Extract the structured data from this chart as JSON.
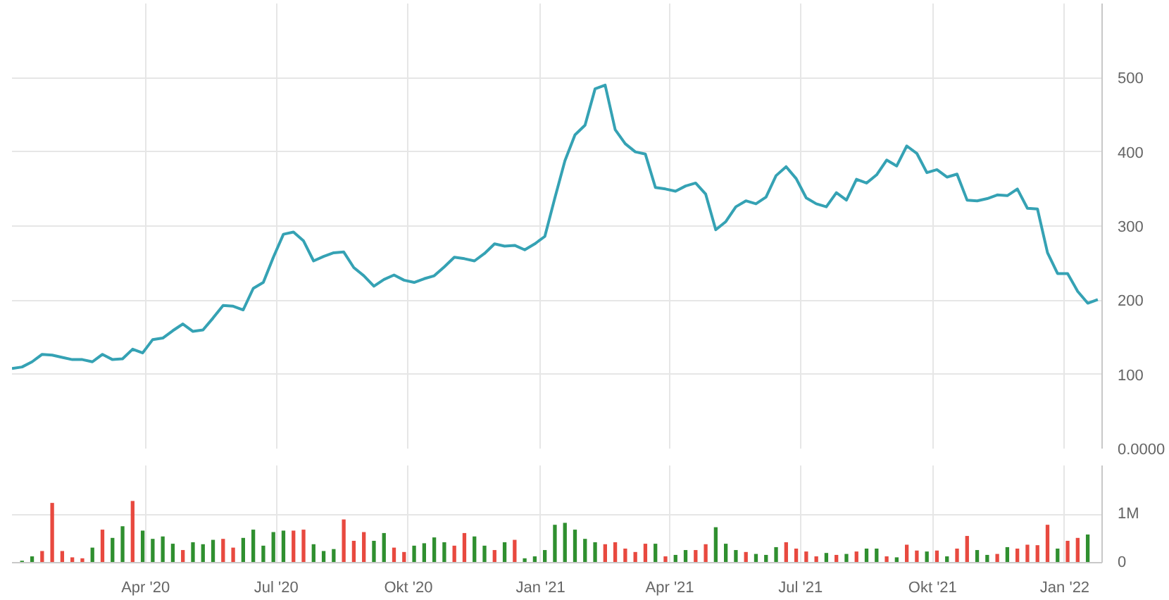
{
  "chart_data": [
    {
      "type": "line",
      "x": [
        "2019-12-30",
        "2020-01-06",
        "2020-01-13",
        "2020-01-20",
        "2020-01-27",
        "2020-02-03",
        "2020-02-10",
        "2020-02-17",
        "2020-02-24",
        "2020-03-02",
        "2020-03-09",
        "2020-03-16",
        "2020-03-23",
        "2020-03-30",
        "2020-04-06",
        "2020-04-13",
        "2020-04-20",
        "2020-04-27",
        "2020-05-04",
        "2020-05-11",
        "2020-05-18",
        "2020-05-25",
        "2020-06-01",
        "2020-06-08",
        "2020-06-15",
        "2020-06-22",
        "2020-06-29",
        "2020-07-06",
        "2020-07-13",
        "2020-07-20",
        "2020-07-27",
        "2020-08-03",
        "2020-08-10",
        "2020-08-17",
        "2020-08-24",
        "2020-08-31",
        "2020-09-07",
        "2020-09-14",
        "2020-09-21",
        "2020-09-28",
        "2020-10-05",
        "2020-10-12",
        "2020-10-19",
        "2020-10-26",
        "2020-11-02",
        "2020-11-09",
        "2020-11-16",
        "2020-11-23",
        "2020-11-30",
        "2020-12-07",
        "2020-12-14",
        "2020-12-21",
        "2020-12-28",
        "2021-01-04",
        "2021-01-11",
        "2021-01-18",
        "2021-01-25",
        "2021-02-01",
        "2021-02-08",
        "2021-02-15",
        "2021-02-22",
        "2021-03-01",
        "2021-03-08",
        "2021-03-15",
        "2021-03-22",
        "2021-03-29",
        "2021-04-05",
        "2021-04-12",
        "2021-04-19",
        "2021-04-26",
        "2021-05-03",
        "2021-05-10",
        "2021-05-17",
        "2021-05-24",
        "2021-05-31",
        "2021-06-07",
        "2021-06-14",
        "2021-06-21",
        "2021-06-28",
        "2021-07-05",
        "2021-07-12",
        "2021-07-19",
        "2021-07-26",
        "2021-08-02",
        "2021-08-09",
        "2021-08-16",
        "2021-08-23",
        "2021-08-30",
        "2021-09-06",
        "2021-09-13",
        "2021-09-20",
        "2021-09-27",
        "2021-10-04",
        "2021-10-11",
        "2021-10-18",
        "2021-10-25",
        "2021-11-01",
        "2021-11-08",
        "2021-11-15",
        "2021-11-22",
        "2021-11-29",
        "2021-12-06",
        "2021-12-13",
        "2021-12-20",
        "2021-12-27",
        "2022-01-03",
        "2022-01-10",
        "2022-01-17",
        "2022-01-24"
      ],
      "series": [
        {
          "color": "#35a2b4",
          "values": [
            108,
            110,
            117,
            127,
            126,
            123,
            120,
            120,
            117,
            127,
            120,
            121,
            134,
            129,
            147,
            149,
            159,
            168,
            158,
            160,
            176,
            193,
            192,
            187,
            216,
            224,
            258,
            289,
            292,
            280,
            253,
            259,
            264,
            265,
            244,
            233,
            219,
            228,
            234,
            227,
            224,
            229,
            233,
            245,
            258,
            256,
            253,
            263,
            276,
            273,
            274,
            268,
            276,
            286,
            338,
            388,
            423,
            436,
            485,
            490,
            430,
            411,
            400,
            397,
            352,
            350,
            347,
            354,
            358,
            343,
            295,
            306,
            326,
            334,
            330,
            339,
            368,
            380,
            364,
            338,
            330,
            326,
            345,
            335,
            363,
            358,
            369,
            389,
            381,
            408,
            398,
            372,
            376,
            366,
            370,
            335,
            334,
            337,
            342,
            341,
            350,
            324,
            323,
            264,
            236,
            236,
            212,
            196,
            201
          ]
        }
      ],
      "xlim": [
        "2019-12-30",
        "2022-01-27"
      ],
      "xticks": [
        {
          "value": "2020-04-01",
          "label": null
        },
        {
          "value": "2020-07-01",
          "label": null
        },
        {
          "value": "2020-10-01",
          "label": null
        },
        {
          "value": "2021-01-01",
          "label": null
        },
        {
          "value": "2021-04-01",
          "label": null
        },
        {
          "value": "2021-07-01",
          "label": null
        },
        {
          "value": "2021-10-01",
          "label": null
        },
        {
          "value": "2022-01-01",
          "label": null
        }
      ],
      "ylim": [
        0,
        600
      ],
      "yticks": [
        {
          "value": 0,
          "label": "0.0000"
        },
        100,
        200,
        300,
        400,
        500
      ],
      "grid": true,
      "tick_labels": "y"
    },
    {
      "type": "bar",
      "x": [
        "2020-01-06",
        "2020-01-13",
        "2020-01-20",
        "2020-01-27",
        "2020-02-03",
        "2020-02-10",
        "2020-02-17",
        "2020-02-24",
        "2020-03-02",
        "2020-03-09",
        "2020-03-16",
        "2020-03-23",
        "2020-03-30",
        "2020-04-06",
        "2020-04-13",
        "2020-04-20",
        "2020-04-27",
        "2020-05-04",
        "2020-05-11",
        "2020-05-18",
        "2020-05-25",
        "2020-06-01",
        "2020-06-08",
        "2020-06-15",
        "2020-06-22",
        "2020-06-29",
        "2020-07-06",
        "2020-07-13",
        "2020-07-20",
        "2020-07-27",
        "2020-08-03",
        "2020-08-10",
        "2020-08-17",
        "2020-08-24",
        "2020-08-31",
        "2020-09-07",
        "2020-09-14",
        "2020-09-21",
        "2020-09-28",
        "2020-10-05",
        "2020-10-12",
        "2020-10-19",
        "2020-10-26",
        "2020-11-02",
        "2020-11-09",
        "2020-11-16",
        "2020-11-23",
        "2020-11-30",
        "2020-12-07",
        "2020-12-14",
        "2020-12-21",
        "2020-12-28",
        "2021-01-04",
        "2021-01-11",
        "2021-01-18",
        "2021-01-25",
        "2021-02-01",
        "2021-02-08",
        "2021-02-15",
        "2021-02-22",
        "2021-03-01",
        "2021-03-08",
        "2021-03-15",
        "2021-03-22",
        "2021-03-29",
        "2021-04-05",
        "2021-04-12",
        "2021-04-19",
        "2021-04-26",
        "2021-05-03",
        "2021-05-10",
        "2021-05-17",
        "2021-05-24",
        "2021-05-31",
        "2021-06-07",
        "2021-06-14",
        "2021-06-21",
        "2021-06-28",
        "2021-07-05",
        "2021-07-12",
        "2021-07-19",
        "2021-07-26",
        "2021-08-02",
        "2021-08-09",
        "2021-08-16",
        "2021-08-23",
        "2021-08-30",
        "2021-09-06",
        "2021-09-13",
        "2021-09-20",
        "2021-09-27",
        "2021-10-04",
        "2021-10-11",
        "2021-10-18",
        "2021-10-25",
        "2021-11-01",
        "2021-11-08",
        "2021-11-15",
        "2021-11-22",
        "2021-11-29",
        "2021-12-06",
        "2021-12-13",
        "2021-12-20",
        "2021-12-27",
        "2022-01-03",
        "2022-01-10",
        "2022-01-17"
      ],
      "values": [
        40000,
        130000,
        240000,
        1230000,
        240000,
        110000,
        90000,
        310000,
        680000,
        510000,
        750000,
        1270000,
        660000,
        490000,
        540000,
        390000,
        260000,
        420000,
        380000,
        470000,
        490000,
        310000,
        510000,
        680000,
        350000,
        630000,
        660000,
        660000,
        680000,
        380000,
        240000,
        280000,
        890000,
        450000,
        630000,
        450000,
        610000,
        310000,
        220000,
        350000,
        400000,
        520000,
        420000,
        350000,
        610000,
        540000,
        350000,
        260000,
        420000,
        470000,
        90000,
        130000,
        260000,
        780000,
        820000,
        680000,
        490000,
        420000,
        380000,
        420000,
        290000,
        220000,
        390000,
        390000,
        130000,
        160000,
        260000,
        260000,
        380000,
        730000,
        390000,
        260000,
        220000,
        180000,
        160000,
        320000,
        420000,
        290000,
        230000,
        130000,
        200000,
        160000,
        180000,
        230000,
        290000,
        290000,
        130000,
        110000,
        370000,
        250000,
        230000,
        250000,
        130000,
        290000,
        550000,
        260000,
        160000,
        180000,
        320000,
        290000,
        370000,
        360000,
        780000,
        290000,
        450000,
        510000,
        580000
      ],
      "colors": [
        "#2f8f2f",
        "#2f8f2f",
        "#e8493f",
        "#e8493f",
        "#e8493f",
        "#e8493f",
        "#e8493f",
        "#2f8f2f",
        "#e8493f",
        "#2f8f2f",
        "#2f8f2f",
        "#e8493f",
        "#2f8f2f",
        "#2f8f2f",
        "#2f8f2f",
        "#2f8f2f",
        "#e8493f",
        "#2f8f2f",
        "#2f8f2f",
        "#2f8f2f",
        "#e8493f",
        "#e8493f",
        "#2f8f2f",
        "#2f8f2f",
        "#2f8f2f",
        "#2f8f2f",
        "#2f8f2f",
        "#e8493f",
        "#e8493f",
        "#2f8f2f",
        "#2f8f2f",
        "#2f8f2f",
        "#e8493f",
        "#e8493f",
        "#e8493f",
        "#2f8f2f",
        "#2f8f2f",
        "#e8493f",
        "#e8493f",
        "#2f8f2f",
        "#2f8f2f",
        "#2f8f2f",
        "#2f8f2f",
        "#e8493f",
        "#e8493f",
        "#2f8f2f",
        "#2f8f2f",
        "#e8493f",
        "#2f8f2f",
        "#e8493f",
        "#2f8f2f",
        "#2f8f2f",
        "#2f8f2f",
        "#2f8f2f",
        "#2f8f2f",
        "#2f8f2f",
        "#2f8f2f",
        "#2f8f2f",
        "#e8493f",
        "#e8493f",
        "#e8493f",
        "#e8493f",
        "#e8493f",
        "#2f8f2f",
        "#e8493f",
        "#2f8f2f",
        "#2f8f2f",
        "#e8493f",
        "#e8493f",
        "#2f8f2f",
        "#2f8f2f",
        "#2f8f2f",
        "#e8493f",
        "#2f8f2f",
        "#2f8f2f",
        "#2f8f2f",
        "#e8493f",
        "#e8493f",
        "#e8493f",
        "#e8493f",
        "#2f8f2f",
        "#e8493f",
        "#2f8f2f",
        "#e8493f",
        "#2f8f2f",
        "#2f8f2f",
        "#e8493f",
        "#2f8f2f",
        "#e8493f",
        "#e8493f",
        "#2f8f2f",
        "#e8493f",
        "#2f8f2f",
        "#e8493f",
        "#e8493f",
        "#2f8f2f",
        "#2f8f2f",
        "#e8493f",
        "#2f8f2f",
        "#e8493f",
        "#e8493f",
        "#e8493f",
        "#e8493f",
        "#2f8f2f",
        "#e8493f",
        "#e8493f",
        "#2f8f2f"
      ],
      "xlim": [
        "2019-12-30",
        "2022-01-27"
      ],
      "xticks": [
        {
          "value": "2020-04-01",
          "label": "Apr '20"
        },
        {
          "value": "2020-07-01",
          "label": "Jul '20"
        },
        {
          "value": "2020-10-01",
          "label": "Okt '20"
        },
        {
          "value": "2021-01-01",
          "label": "Jan '21"
        },
        {
          "value": "2021-04-01",
          "label": "Apr '21"
        },
        {
          "value": "2021-07-01",
          "label": "Jul '21"
        },
        {
          "value": "2021-10-01",
          "label": "Okt '21"
        },
        {
          "value": "2022-01-01",
          "label": "Jan '22"
        }
      ],
      "ylim": [
        0,
        2000000
      ],
      "yticks": [
        0,
        {
          "value": 1000000,
          "label": "1M"
        }
      ],
      "grid": true
    }
  ]
}
